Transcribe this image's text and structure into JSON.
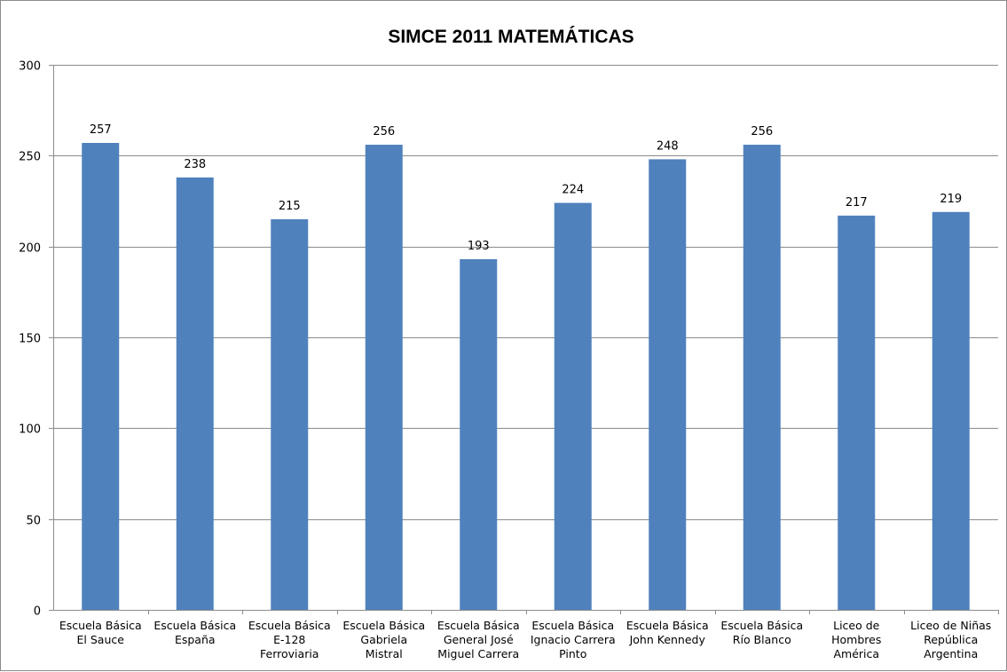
{
  "chart_data": {
    "type": "bar",
    "title": "SIMCE 2011 MATEMÁTICAS",
    "categories": [
      [
        "Escuela Básica",
        "El Sauce"
      ],
      [
        "Escuela Básica",
        "España"
      ],
      [
        "Escuela Básica",
        "E-128",
        "Ferroviaria"
      ],
      [
        "Escuela Básica",
        "Gabriela",
        "Mistral"
      ],
      [
        "Escuela Básica",
        "General José",
        "Miguel Carrera"
      ],
      [
        "Escuela Básica",
        "Ignacio Carrera",
        "Pinto"
      ],
      [
        "Escuela Básica",
        "John Kennedy"
      ],
      [
        "Escuela Básica",
        "Río Blanco"
      ],
      [
        "Liceo de",
        "Hombres",
        "América"
      ],
      [
        "Liceo de Niñas",
        "República",
        "Argentina"
      ]
    ],
    "values": [
      257,
      238,
      215,
      256,
      193,
      224,
      248,
      256,
      217,
      219
    ],
    "data_labels": [
      "257",
      "238",
      "215",
      "256",
      "193",
      "224",
      "248",
      "256",
      "217",
      "219"
    ],
    "ylim": [
      0,
      300
    ],
    "yticks": [
      0,
      50,
      100,
      150,
      200,
      250,
      300
    ],
    "ytick_labels": [
      "0",
      "50",
      "100",
      "150",
      "200",
      "250",
      "300"
    ],
    "xlabel": "",
    "ylabel": "",
    "grid": true,
    "legend": "none",
    "colors": {
      "bar": "#4f81bd",
      "grid": "#8c8c8c",
      "axis": "#8c8c8c",
      "border": "#8c8c8c"
    }
  }
}
